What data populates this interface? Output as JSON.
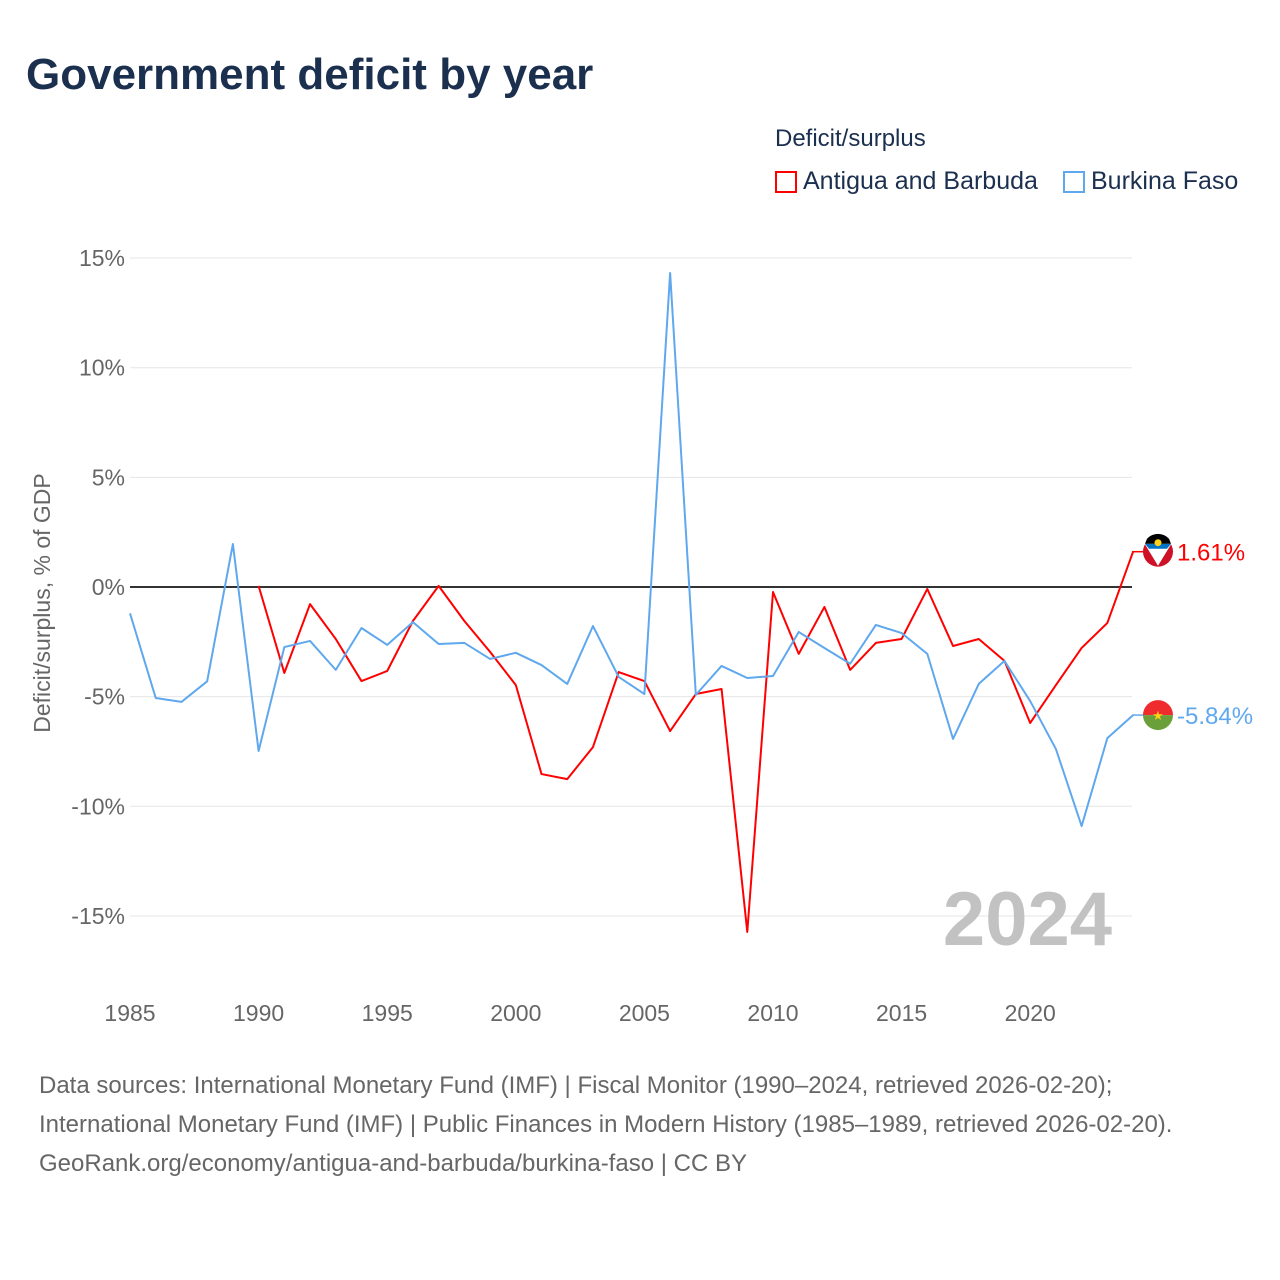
{
  "title": "Government deficit by year",
  "legend": {
    "title": "Deficit/surplus",
    "items": [
      "Antigua and Barbuda",
      "Burkina Faso"
    ]
  },
  "colors": {
    "antigua": "#ff0000",
    "burkina": "#5fa8ee"
  },
  "chart_data": {
    "type": "line",
    "title": "Government deficit by year",
    "xlabel": "",
    "ylabel": "Deficit/surplus, % of GDP",
    "xlim": [
      1985,
      2024
    ],
    "ylim": [
      -15,
      15
    ],
    "x_ticks": [
      "1985",
      "1990",
      "1995",
      "2000",
      "2005",
      "2010",
      "2015",
      "2020"
    ],
    "y_ticks": [
      "15%",
      "10%",
      "5%",
      "0%",
      "-5%",
      "-10%",
      "-15%"
    ],
    "year_watermark": "2024",
    "series": [
      {
        "name": "Antigua and Barbuda",
        "end_label": "1.61%",
        "start": 1990,
        "values": [
          0.05,
          -3.92,
          -0.78,
          -2.37,
          -4.29,
          -3.83,
          -1.55,
          0.05,
          -1.55,
          -2.96,
          -4.47,
          -8.53,
          -8.76,
          -7.3,
          -3.88,
          -4.29,
          -6.57,
          -4.88,
          -4.65,
          -15.73,
          -0.23,
          -3.05,
          -0.91,
          -3.78,
          -2.55,
          -2.37,
          -0.09,
          -2.69,
          -2.37,
          -3.37,
          -6.2,
          -4.47,
          -2.78,
          -1.64,
          1.61
        ]
      },
      {
        "name": "Burkina Faso",
        "end_label": "-5.84%",
        "start": 1985,
        "values": [
          -1.2,
          -5.06,
          -5.24,
          -4.3,
          1.96,
          -7.48,
          -2.74,
          -2.46,
          -3.78,
          -1.87,
          -2.64,
          -1.6,
          -2.6,
          -2.55,
          -3.28,
          -3.0,
          -3.56,
          -4.42,
          -1.78,
          -4.1,
          -4.88,
          14.32,
          -4.92,
          -3.6,
          -4.15,
          -4.06,
          -2.05,
          -2.78,
          -3.5,
          -1.73,
          -2.1,
          -3.05,
          -6.93,
          -4.42,
          -3.37,
          -5.2,
          -7.39,
          -10.9,
          -6.89,
          -5.84
        ]
      }
    ]
  },
  "footer": {
    "sources": "Data sources: International Monetary Fund (IMF) | Fiscal Monitor (1990–2024, retrieved 2026-02-20); International Monetary Fund (IMF) | Public Finances in Modern History (1985–1989, retrieved 2026-02-20).",
    "link": "GeoRank.org/economy/antigua-and-barbuda/burkina-faso | CC BY"
  }
}
